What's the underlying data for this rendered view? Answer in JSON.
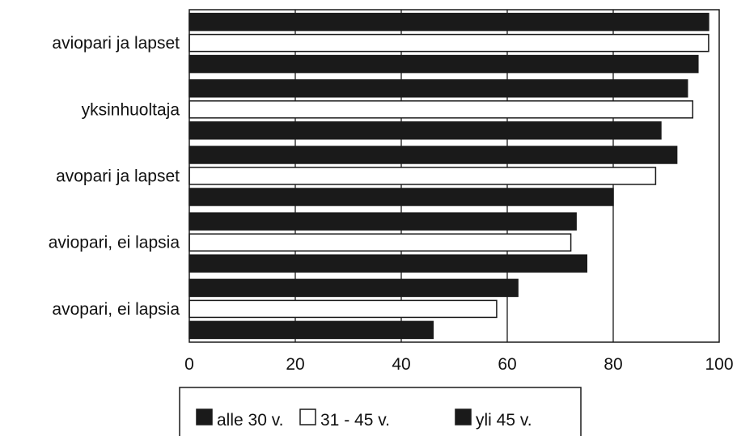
{
  "chart_data": {
    "type": "bar",
    "orientation": "horizontal",
    "categories": [
      "aviopari ja lapset",
      "yksinhuoltaja",
      "avopari ja lapset",
      "aviopari, ei lapsia",
      "avopari, ei lapsia"
    ],
    "series": [
      {
        "name": "alle 30 v.",
        "values": [
          98,
          94,
          92,
          73,
          62
        ],
        "color": "#1a1a1a"
      },
      {
        "name": "31 - 45 v.",
        "values": [
          98,
          95,
          88,
          72,
          58
        ],
        "color": "#ffffff"
      },
      {
        "name": "yli 45 v.",
        "values": [
          96,
          89,
          80,
          75,
          46
        ],
        "color": "#1a1a1a"
      }
    ],
    "xlim": [
      0,
      100
    ],
    "xticks": [
      "0",
      "20",
      "40",
      "60",
      "80",
      "100"
    ],
    "xlabel": "",
    "ylabel": "",
    "title": "",
    "grid": "vertical",
    "legend": "bottom"
  }
}
